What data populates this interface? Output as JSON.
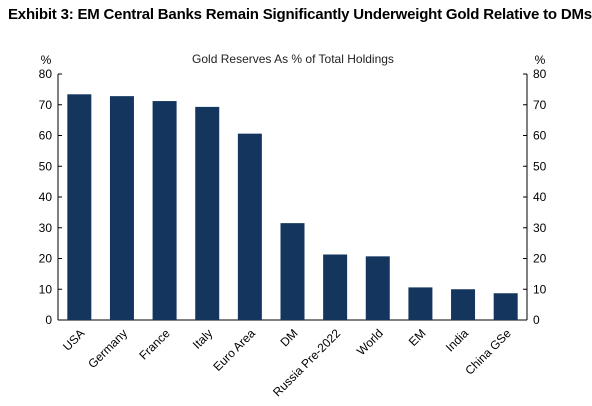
{
  "exhibit_title": "Exhibit 3: EM Central Banks Remain Significantly Underweight Gold Relative to DMs",
  "chart_data": {
    "type": "bar",
    "title": "Gold Reserves As % of Total Holdings",
    "ylabel_left": "%",
    "ylabel_right": "%",
    "categories": [
      "USA",
      "Germany",
      "France",
      "Italy",
      "Euro Area",
      "DM",
      "Russia Pre-2022",
      "World",
      "EM",
      "India",
      "China GSe"
    ],
    "values": [
      73.4,
      72.8,
      71.2,
      69.3,
      60.6,
      31.5,
      21.3,
      20.7,
      10.6,
      10.0,
      8.7
    ],
    "ylim": [
      0,
      80
    ],
    "yticks": [
      "0",
      "10",
      "20",
      "30",
      "40",
      "50",
      "60",
      "70",
      "80"
    ],
    "bar_color": "#14365e",
    "grid": false,
    "legend": "none"
  }
}
